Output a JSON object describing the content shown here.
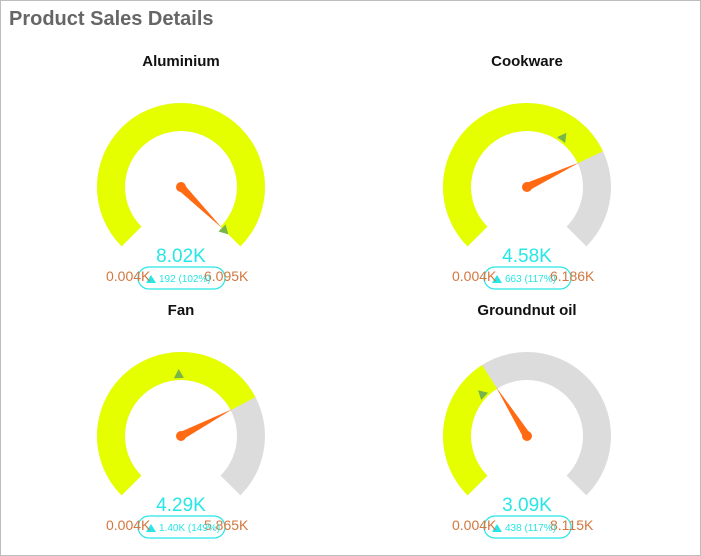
{
  "title": "Product Sales Details",
  "colors": {
    "fill": "#e6ff00",
    "track": "#dcdcdc",
    "needle": "#ff6a13",
    "target": "#77b54a",
    "value": "#27e6e6",
    "range": "#d2773f"
  },
  "chart_data": [
    {
      "type": "gauge",
      "title": "Aluminium",
      "min": 0.004,
      "max": 6.095,
      "min_label": "0.004K",
      "max_label": "6.095K",
      "value": 8.02,
      "value_label": "8.02K",
      "target": 7.83,
      "delta_label": "192 (102%)"
    },
    {
      "type": "gauge",
      "title": "Cookware",
      "min": 0.004,
      "max": 6.186,
      "min_label": "0.004K",
      "max_label": "6.186K",
      "value": 4.58,
      "value_label": "4.58K",
      "target": 3.92,
      "delta_label": "663 (117%)"
    },
    {
      "type": "gauge",
      "title": "Fan",
      "min": 0.004,
      "max": 5.865,
      "min_label": "0.004K",
      "max_label": "5.865K",
      "value": 4.29,
      "value_label": "4.29K",
      "target": 2.89,
      "delta_label": "1.40K (149%)"
    },
    {
      "type": "gauge",
      "title": "Groundnut oil",
      "min": 0.004,
      "max": 8.115,
      "min_label": "0.004K",
      "max_label": "8.115K",
      "value": 3.09,
      "value_label": "3.09K",
      "target": 2.65,
      "delta_label": "438 (117%)"
    }
  ]
}
